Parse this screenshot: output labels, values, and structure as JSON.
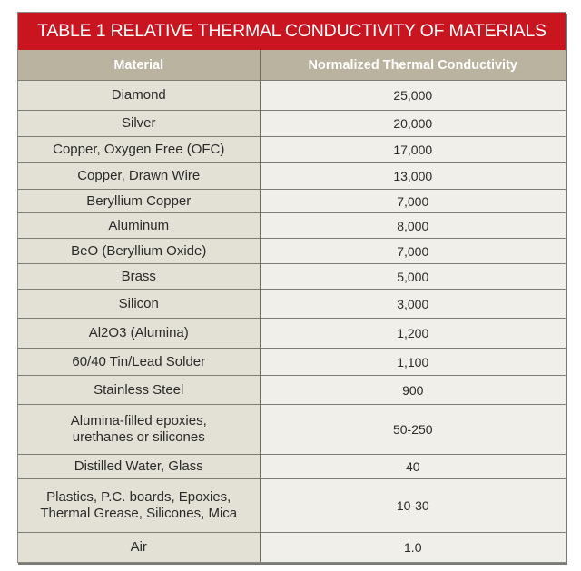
{
  "title": "TABLE 1 RELATIVE THERMAL CONDUCTIVITY OF MATERIALS",
  "colors": {
    "title_bg": "#c8151f",
    "header_bg": "#b9b39f",
    "material_col_bg": "#e3e0d5",
    "value_col_bg": "#f0efe9"
  },
  "headers": {
    "material": "Material",
    "conductivity": "Normalized Thermal Conductivity"
  },
  "rows": [
    {
      "material": "Diamond",
      "value": "25,000",
      "h": 33
    },
    {
      "material": "Silver",
      "value": "20,000",
      "h": 29
    },
    {
      "material": "Copper, Oxygen Free (OFC)",
      "value": "17,000",
      "h": 29
    },
    {
      "material": "Copper, Drawn Wire",
      "value": "13,000",
      "h": 29
    },
    {
      "material": "Beryllium Copper",
      "value": "7,000",
      "h": 26
    },
    {
      "material": "Aluminum",
      "value": "8,000",
      "h": 28
    },
    {
      "material": "BeO (Beryllium Oxide)",
      "value": "7,000",
      "h": 28
    },
    {
      "material": "Brass",
      "value": "5,000",
      "h": 28
    },
    {
      "material": "Silicon",
      "value": "3,000",
      "h": 32
    },
    {
      "material": "Al2O3 (Alumina)",
      "value": "1,200",
      "h": 33
    },
    {
      "material": "60/40 Tin/Lead Solder",
      "value": "1,100",
      "h": 30
    },
    {
      "material": "Stainless Steel",
      "value": "900",
      "h": 32
    },
    {
      "material": "Alumina-filled epoxies, urethanes or silicones",
      "material_lines": [
        "Alumina-filled epoxies,",
        "urethanes or silicones"
      ],
      "value": "50-250",
      "h": 55
    },
    {
      "material": "Distilled Water, Glass",
      "value": "40",
      "h": 27
    },
    {
      "material": "Plastics, P.C. boards, Epoxies, Thermal Grease, Silicones, Mica",
      "material_lines": [
        "Plastics, P.C. boards, Epoxies,",
        "Thermal Grease, Silicones, Mica"
      ],
      "value": "10-30",
      "h": 59
    },
    {
      "material": "Air",
      "value": "1.0",
      "h": 32
    }
  ]
}
